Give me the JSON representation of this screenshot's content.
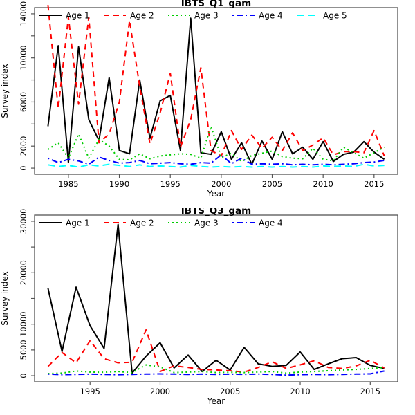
{
  "page": {
    "background": "#ffffff",
    "axis_color": "#545454",
    "text_color": "#000000"
  },
  "chart_data": [
    {
      "type": "line",
      "title": "IBTS_Q1_gam",
      "xlabel": "Year",
      "ylabel": "Survey index",
      "grid": false,
      "legend_position": "top-inside-row",
      "xlim": [
        1981.68,
        2017.32
      ],
      "ylim": [
        -560,
        14560
      ],
      "xticks": [
        1985,
        1990,
        1995,
        2000,
        2005,
        2010,
        2015
      ],
      "ytick_values": [
        0,
        2000,
        4000,
        6000,
        8000,
        10000,
        12000,
        14000
      ],
      "ytick_labels": [
        "0",
        "2000",
        "",
        "6000",
        "",
        "10000",
        "",
        "14000"
      ],
      "x": [
        1983,
        1984,
        1985,
        1986,
        1987,
        1988,
        1989,
        1990,
        1991,
        1992,
        1993,
        1994,
        1995,
        1996,
        1997,
        1998,
        1999,
        2000,
        2001,
        2002,
        2003,
        2004,
        2005,
        2006,
        2007,
        2008,
        2009,
        2010,
        2011,
        2012,
        2013,
        2014,
        2015,
        2016
      ],
      "series": [
        {
          "name": "Age 1",
          "color": "#000000",
          "linetype": "solid",
          "values": [
            3800,
            11100,
            500,
            11000,
            4400,
            2500,
            8200,
            1600,
            1300,
            8000,
            2700,
            6100,
            6600,
            1600,
            13600,
            1400,
            1250,
            3300,
            800,
            2300,
            350,
            2450,
            800,
            3300,
            1300,
            1900,
            800,
            2400,
            600,
            1250,
            1450,
            2400,
            1450,
            800
          ]
        },
        {
          "name": "Age 2",
          "color": "#ff0000",
          "linetype": "dashed",
          "values": [
            14800,
            5400,
            13700,
            5800,
            13700,
            2300,
            3100,
            6000,
            13400,
            7400,
            2200,
            5000,
            8600,
            1900,
            4400,
            9100,
            1600,
            1100,
            3400,
            1700,
            3000,
            1800,
            2800,
            1600,
            3200,
            1600,
            2100,
            2750,
            1200,
            1500,
            1500,
            1400,
            3400,
            1100
          ]
        },
        {
          "name": "Age 3",
          "color": "#00cd00",
          "linetype": "dotted",
          "values": [
            1700,
            2300,
            900,
            3100,
            900,
            2600,
            2000,
            800,
            750,
            1300,
            850,
            1100,
            1200,
            1300,
            1250,
            900,
            3800,
            950,
            1350,
            600,
            1150,
            1350,
            1550,
            1050,
            900,
            850,
            1800,
            820,
            650,
            1900,
            1400,
            900,
            1400,
            1900
          ]
        },
        {
          "name": "Age 4",
          "color": "#0000ff",
          "linetype": "dotdash",
          "values": [
            900,
            500,
            800,
            650,
            350,
            1000,
            700,
            450,
            500,
            700,
            400,
            450,
            500,
            400,
            350,
            500,
            450,
            1200,
            400,
            900,
            350,
            400,
            350,
            400,
            300,
            350,
            300,
            350,
            300,
            350,
            400,
            500,
            550,
            700
          ]
        },
        {
          "name": "Age 5",
          "color": "#00ffff",
          "linetype": "longdash",
          "values": [
            300,
            150,
            250,
            100,
            300,
            200,
            350,
            250,
            150,
            300,
            150,
            200,
            150,
            100,
            250,
            150,
            100,
            150,
            100,
            150,
            100,
            150,
            100,
            150,
            100,
            150,
            100,
            200,
            150,
            200,
            150,
            350,
            200,
            250
          ]
        }
      ]
    },
    {
      "type": "line",
      "title": "IBTS_Q3_gam",
      "xlabel": "Year",
      "ylabel": "Survey index",
      "grid": false,
      "legend_position": "top-inside-row",
      "xlim": [
        1991.04,
        2016.96
      ],
      "ylim": [
        -1200,
        31200
      ],
      "xticks": [
        1995,
        2000,
        2005,
        2010,
        2015
      ],
      "ytick_values": [
        0,
        5000,
        10000,
        15000,
        20000,
        25000,
        30000
      ],
      "ytick_labels": [
        "0",
        "5000",
        "10000",
        "",
        "20000",
        "",
        "30000"
      ],
      "x": [
        1992,
        1993,
        1994,
        1995,
        1996,
        1997,
        1998,
        1999,
        2000,
        2001,
        2002,
        2003,
        2004,
        2005,
        2006,
        2007,
        2008,
        2009,
        2010,
        2011,
        2012,
        2013,
        2014,
        2015,
        2016
      ],
      "series": [
        {
          "name": "Age 1",
          "color": "#000000",
          "linetype": "solid",
          "values": [
            17000,
            4700,
            17200,
            9700,
            5300,
            29400,
            500,
            3800,
            6400,
            1500,
            4000,
            800,
            3000,
            1100,
            5500,
            2300,
            1800,
            2000,
            4600,
            1200,
            2300,
            3300,
            3500,
            2000,
            1400
          ]
        },
        {
          "name": "Age 2",
          "color": "#ff0000",
          "linetype": "dashed",
          "values": [
            1800,
            4500,
            2500,
            6800,
            3300,
            2500,
            2600,
            8900,
            800,
            1900,
            1600,
            1200,
            1100,
            950,
            700,
            1600,
            2700,
            1400,
            2100,
            2900,
            1600,
            1400,
            1900,
            3000,
            1500
          ]
        },
        {
          "name": "Age 3",
          "color": "#00cd00",
          "linetype": "dotted",
          "values": [
            400,
            500,
            900,
            700,
            650,
            800,
            600,
            2100,
            1700,
            600,
            700,
            800,
            600,
            650,
            600,
            700,
            800,
            500,
            700,
            800,
            950,
            1100,
            1200,
            1400,
            1600
          ]
        },
        {
          "name": "Age 4",
          "color": "#0000ff",
          "linetype": "dotdash",
          "values": [
            300,
            200,
            250,
            300,
            250,
            200,
            250,
            300,
            350,
            300,
            250,
            300,
            250,
            300,
            250,
            300,
            250,
            100,
            200,
            250,
            200,
            250,
            300,
            350,
            900
          ]
        }
      ]
    }
  ]
}
